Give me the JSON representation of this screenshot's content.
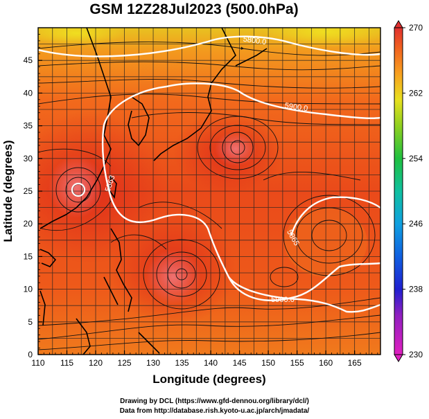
{
  "title": "GSM 12Z28Jul2023 (500.0hPa)",
  "xlabel": "Longitude (degrees)",
  "ylabel": "Latitude  (degrees)",
  "x_ticks": [
    "110",
    "115",
    "120",
    "125",
    "130",
    "135",
    "140",
    "145",
    "150",
    "155",
    "160",
    "165"
  ],
  "y_ticks": [
    "0",
    "5",
    "10",
    "15",
    "20",
    "25",
    "30",
    "35",
    "40",
    "45"
  ],
  "colorbar": {
    "labels": [
      "270",
      "262",
      "254",
      "246",
      "238",
      "230"
    ],
    "unit_range": [
      230,
      270
    ]
  },
  "contours": [
    {
      "label": "5800.0"
    },
    {
      "label": "5900.0"
    },
    {
      "label": "5863"
    },
    {
      "label": "5900.0"
    },
    {
      "label": "5865"
    }
  ],
  "credits": {
    "line1": "Drawing by DCL (https://www.gfd-dennou.org/library/dcl/)",
    "line2": "Data from http://database.rish.kyoto-u.ac.jp/arch/jmadata/"
  },
  "colors": {
    "field_dark": "#e0301a",
    "field_mid": "#f0581a",
    "field_light": "#f8a020",
    "field_top": "#e8d020",
    "contour": "#ffffff",
    "coast": "#000000"
  }
}
